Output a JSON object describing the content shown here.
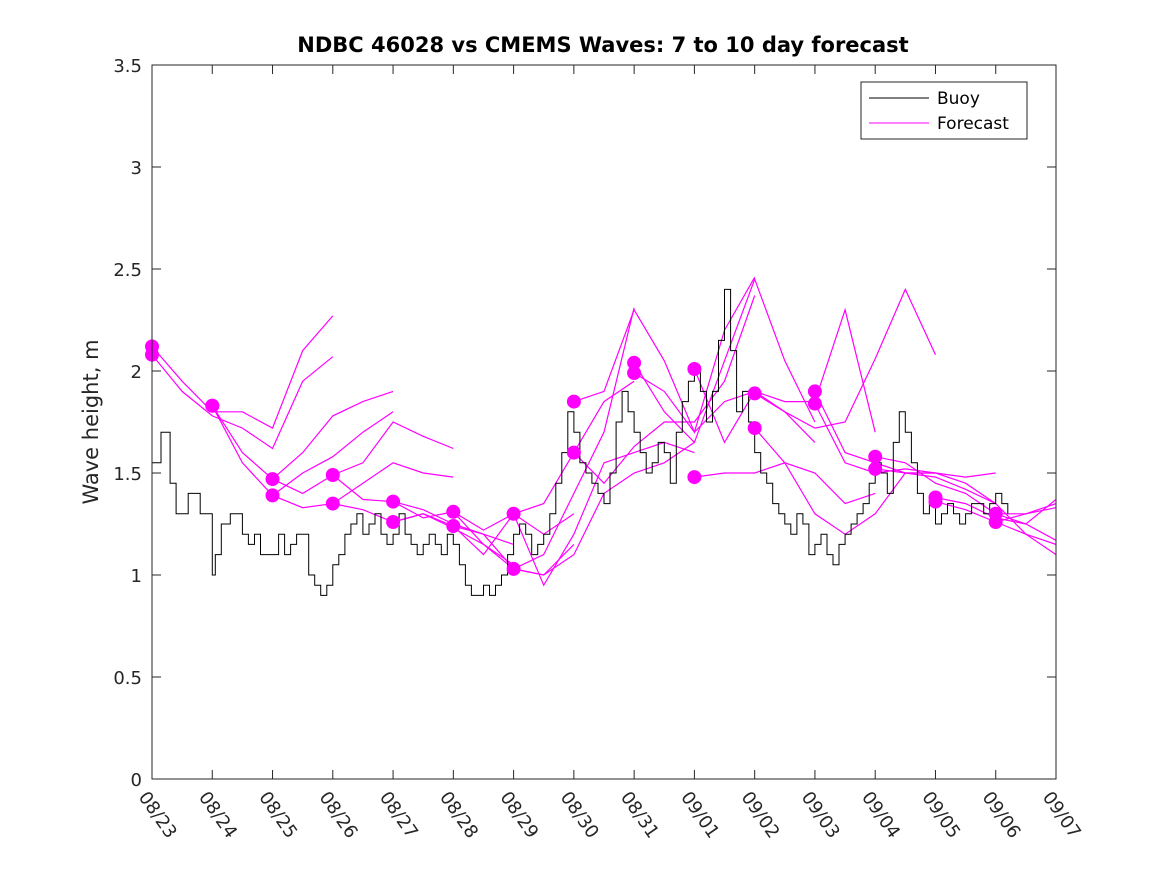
{
  "chart_data": {
    "type": "line",
    "title": "NDBC 46028 vs CMEMS Waves: 7 to 10 day forecast",
    "xlabel": "",
    "ylabel": "Wave height, m",
    "xlim": [
      0,
      15
    ],
    "ylim": [
      0,
      3.5
    ],
    "yticks": [
      0,
      0.5,
      1,
      1.5,
      2,
      2.5,
      3,
      3.5
    ],
    "ytick_labels": [
      "0",
      "0.5",
      "1",
      "1.5",
      "2",
      "2.5",
      "3",
      "3.5"
    ],
    "xticks": [
      0,
      1,
      2,
      3,
      4,
      5,
      6,
      7,
      8,
      9,
      10,
      11,
      12,
      13,
      14,
      15
    ],
    "xtick_labels": [
      "08/23",
      "08/24",
      "08/25",
      "08/26",
      "08/27",
      "08/28",
      "08/29",
      "08/30",
      "08/31",
      "09/01",
      "09/02",
      "09/03",
      "09/04",
      "09/05",
      "09/06",
      "09/07"
    ],
    "grid": false,
    "legend": {
      "position": "top-right",
      "entries": [
        {
          "label": "Buoy",
          "color": "#000000"
        },
        {
          "label": "Forecast",
          "color": "#ff00ff"
        }
      ]
    },
    "colors": {
      "buoy": "#000000",
      "forecast": "#ff00ff",
      "axis": "#262626"
    },
    "x_units": "days since 08/23",
    "buoy": {
      "name": "Buoy",
      "x": [
        0,
        0.15,
        0.3,
        0.4,
        0.5,
        0.6,
        0.8,
        1.0,
        1.05,
        1.15,
        1.3,
        1.5,
        1.6,
        1.7,
        1.8,
        2.0,
        2.1,
        2.2,
        2.3,
        2.4,
        2.5,
        2.6,
        2.7,
        2.8,
        2.9,
        3.0,
        3.1,
        3.2,
        3.3,
        3.4,
        3.5,
        3.6,
        3.7,
        3.8,
        3.9,
        4.0,
        4.1,
        4.2,
        4.3,
        4.4,
        4.5,
        4.6,
        4.7,
        4.8,
        4.9,
        5.0,
        5.1,
        5.2,
        5.3,
        5.4,
        5.5,
        5.6,
        5.7,
        5.8,
        5.9,
        6.0,
        6.1,
        6.2,
        6.3,
        6.4,
        6.5,
        6.6,
        6.7,
        6.8,
        6.9,
        7.0,
        7.1,
        7.2,
        7.3,
        7.4,
        7.5,
        7.6,
        7.7,
        7.8,
        7.9,
        8.0,
        8.1,
        8.2,
        8.3,
        8.4,
        8.5,
        8.6,
        8.7,
        8.8,
        8.9,
        9.0,
        9.1,
        9.2,
        9.3,
        9.4,
        9.5,
        9.6,
        9.7,
        9.8,
        9.9,
        10.0,
        10.1,
        10.2,
        10.3,
        10.4,
        10.5,
        10.6,
        10.7,
        10.8,
        10.9,
        11.0,
        11.1,
        11.2,
        11.3,
        11.4,
        11.5,
        11.6,
        11.7,
        11.8,
        11.9,
        12.0,
        12.1,
        12.2,
        12.3,
        12.4,
        12.5,
        12.6,
        12.7,
        12.8,
        12.9,
        13.0,
        13.1,
        13.2,
        13.3,
        13.4,
        13.5,
        13.6,
        13.7,
        13.8,
        13.9,
        14.0,
        14.1,
        14.2
      ],
      "values": [
        1.55,
        1.7,
        1.45,
        1.3,
        1.3,
        1.4,
        1.3,
        1.0,
        1.1,
        1.25,
        1.3,
        1.2,
        1.15,
        1.2,
        1.1,
        1.1,
        1.2,
        1.1,
        1.15,
        1.2,
        1.2,
        1.0,
        0.95,
        0.9,
        0.95,
        1.05,
        1.1,
        1.2,
        1.25,
        1.3,
        1.2,
        1.25,
        1.3,
        1.2,
        1.15,
        1.2,
        1.3,
        1.2,
        1.15,
        1.1,
        1.15,
        1.2,
        1.15,
        1.1,
        1.2,
        1.15,
        1.05,
        0.95,
        0.9,
        0.9,
        0.95,
        0.9,
        0.95,
        1.0,
        1.1,
        1.2,
        1.25,
        1.2,
        1.1,
        1.15,
        1.2,
        1.3,
        1.45,
        1.6,
        1.8,
        1.7,
        1.55,
        1.5,
        1.45,
        1.4,
        1.35,
        1.5,
        1.75,
        1.9,
        1.8,
        1.7,
        1.6,
        1.5,
        1.55,
        1.65,
        1.6,
        1.45,
        1.7,
        1.85,
        1.95,
        2.0,
        1.9,
        1.75,
        1.9,
        2.15,
        2.4,
        2.1,
        1.8,
        1.9,
        1.75,
        1.6,
        1.5,
        1.45,
        1.35,
        1.3,
        1.25,
        1.2,
        1.3,
        1.25,
        1.1,
        1.15,
        1.2,
        1.1,
        1.05,
        1.15,
        1.2,
        1.25,
        1.3,
        1.35,
        1.45,
        1.55,
        1.5,
        1.4,
        1.65,
        1.8,
        1.7,
        1.55,
        1.4,
        1.3,
        1.35,
        1.25,
        1.3,
        1.35,
        1.3,
        1.25,
        1.3,
        1.35,
        1.35,
        1.3,
        1.35,
        1.4,
        1.35,
        1.3
      ]
    },
    "forecast_series": [
      {
        "name": "Forecast",
        "x": [
          0,
          0.5,
          1.0,
          1.5,
          2.0,
          2.5,
          3.0
        ],
        "values": [
          2.12,
          1.95,
          1.8,
          1.8,
          1.72,
          2.1,
          2.27
        ]
      },
      {
        "name": "Forecast",
        "x": [
          0,
          0.5,
          1.0,
          1.5,
          2.0,
          2.5,
          3.0
        ],
        "values": [
          2.08,
          1.9,
          1.78,
          1.72,
          1.62,
          1.95,
          2.07
        ]
      },
      {
        "name": "Forecast",
        "x": [
          1.0,
          1.5,
          2.0,
          2.5,
          3.0,
          3.5,
          4.0
        ],
        "values": [
          1.83,
          1.6,
          1.47,
          1.6,
          1.78,
          1.85,
          1.9
        ]
      },
      {
        "name": "Forecast",
        "x": [
          1.0,
          1.5,
          2.0,
          2.5,
          3.0,
          3.5,
          4.0
        ],
        "values": [
          1.83,
          1.55,
          1.39,
          1.5,
          1.58,
          1.7,
          1.8
        ]
      },
      {
        "name": "Forecast",
        "x": [
          2.0,
          2.5,
          3.0,
          3.5,
          4.0,
          4.5,
          5.0
        ],
        "values": [
          1.47,
          1.4,
          1.49,
          1.55,
          1.75,
          1.68,
          1.62
        ]
      },
      {
        "name": "Forecast",
        "x": [
          2.0,
          2.5,
          3.0,
          3.5,
          4.0,
          4.5,
          5.0
        ],
        "values": [
          1.39,
          1.33,
          1.35,
          1.45,
          1.55,
          1.5,
          1.48
        ]
      },
      {
        "name": "Forecast",
        "x": [
          3.0,
          3.5,
          4.0,
          4.5,
          5.0,
          5.5,
          6.0
        ],
        "values": [
          1.49,
          1.37,
          1.36,
          1.32,
          1.25,
          1.2,
          1.15
        ]
      },
      {
        "name": "Forecast",
        "x": [
          3.0,
          3.5,
          4.0,
          4.5,
          5.0,
          5.5,
          6.0
        ],
        "values": [
          1.35,
          1.32,
          1.26,
          1.3,
          1.23,
          1.15,
          1.05
        ]
      },
      {
        "name": "Forecast",
        "x": [
          4.0,
          4.5,
          5.0,
          5.5,
          6.0,
          6.5,
          7.0
        ],
        "values": [
          1.36,
          1.28,
          1.31,
          1.22,
          1.3,
          1.2,
          1.3
        ]
      },
      {
        "name": "Forecast",
        "x": [
          4.0,
          4.5,
          5.0,
          5.5,
          6.0,
          6.5,
          7.0
        ],
        "values": [
          1.26,
          1.3,
          1.24,
          1.2,
          1.03,
          1.0,
          1.15
        ]
      },
      {
        "name": "Forecast",
        "x": [
          5.0,
          5.5,
          6.0,
          6.5,
          7.0,
          7.5,
          8.0
        ],
        "values": [
          1.31,
          1.15,
          1.03,
          1.1,
          1.4,
          1.7,
          2.31
        ]
      },
      {
        "name": "Forecast",
        "x": [
          5.0,
          5.5,
          6.0,
          6.5,
          7.0,
          7.5,
          8.0
        ],
        "values": [
          1.24,
          1.1,
          1.3,
          1.35,
          1.6,
          1.85,
          1.95
        ]
      },
      {
        "name": "Forecast",
        "x": [
          6.0,
          6.5,
          7.0,
          7.5,
          8.0,
          8.5,
          9.0
        ],
        "values": [
          1.3,
          0.95,
          1.2,
          1.55,
          1.6,
          1.65,
          1.6
        ]
      },
      {
        "name": "Forecast",
        "x": [
          6.0,
          6.5,
          7.0,
          7.5,
          8.0,
          8.5,
          9.0
        ],
        "values": [
          1.03,
          1.0,
          1.1,
          1.4,
          1.5,
          1.55,
          1.65
        ]
      },
      {
        "name": "Forecast",
        "x": [
          7.0,
          7.5,
          8.0,
          8.5,
          9.0,
          9.5,
          10.0
        ],
        "values": [
          1.85,
          1.9,
          2.3,
          2.05,
          1.7,
          2.2,
          2.46
        ]
      },
      {
        "name": "Forecast",
        "x": [
          7.0,
          7.5,
          8.0,
          8.5,
          9.0,
          9.5,
          10.0
        ],
        "values": [
          1.6,
          1.45,
          1.63,
          1.75,
          1.75,
          1.95,
          2.37
        ]
      },
      {
        "name": "Forecast",
        "x": [
          8.0,
          8.5,
          9.0,
          9.5,
          10.0,
          10.5,
          11.0
        ],
        "values": [
          2.04,
          1.8,
          1.65,
          2.05,
          2.45,
          2.05,
          1.75
        ]
      },
      {
        "name": "Forecast",
        "x": [
          8.0,
          8.5,
          9.0,
          9.5,
          10.0,
          10.5,
          11.0
        ],
        "values": [
          1.99,
          1.9,
          1.7,
          1.85,
          1.9,
          1.8,
          1.65
        ]
      },
      {
        "name": "Forecast",
        "x": [
          9.0,
          9.5,
          10.0,
          10.5,
          11.0,
          11.5,
          12.0
        ],
        "values": [
          2.01,
          1.65,
          1.9,
          1.85,
          1.85,
          2.3,
          1.7
        ]
      },
      {
        "name": "Forecast",
        "x": [
          9.0,
          9.5,
          10.0,
          10.5,
          11.0,
          11.5,
          12.0
        ],
        "values": [
          1.48,
          1.5,
          1.5,
          1.55,
          1.5,
          1.35,
          1.4
        ]
      },
      {
        "name": "Forecast",
        "x": [
          10.0,
          10.5,
          11.0,
          11.5,
          12.0,
          12.5,
          13.0
        ],
        "values": [
          1.89,
          1.8,
          1.72,
          1.75,
          2.06,
          2.4,
          2.08
        ]
      },
      {
        "name": "Forecast",
        "x": [
          10.0,
          10.5,
          11.0,
          11.5,
          12.0,
          12.5,
          13.0
        ],
        "values": [
          1.72,
          1.55,
          1.3,
          1.2,
          1.3,
          1.5,
          1.5
        ]
      },
      {
        "name": "Forecast",
        "x": [
          11.0,
          11.5,
          12.0,
          12.5,
          13.0,
          13.5,
          14.0
        ],
        "values": [
          1.9,
          1.6,
          1.55,
          1.5,
          1.48,
          1.42,
          1.35
        ]
      },
      {
        "name": "Forecast",
        "x": [
          11.0,
          11.5,
          12.0,
          12.5,
          13.0,
          13.5,
          14.0
        ],
        "values": [
          1.84,
          1.55,
          1.5,
          1.52,
          1.5,
          1.48,
          1.5
        ]
      },
      {
        "name": "Forecast",
        "x": [
          12.0,
          12.5,
          13.0,
          13.5,
          14.0,
          14.5,
          15.0
        ],
        "values": [
          1.58,
          1.55,
          1.45,
          1.4,
          1.3,
          1.25,
          1.37
        ]
      },
      {
        "name": "Forecast",
        "x": [
          12.0,
          12.5,
          13.0,
          13.5,
          14.0,
          14.5,
          15.0
        ],
        "values": [
          1.52,
          1.5,
          1.5,
          1.45,
          1.35,
          1.2,
          1.1
        ]
      },
      {
        "name": "Forecast",
        "x": [
          13.0,
          13.5,
          14.0,
          14.5,
          15.0
        ],
        "values": [
          1.38,
          1.35,
          1.28,
          1.25,
          1.17
        ]
      },
      {
        "name": "Forecast",
        "x": [
          13.0,
          13.5,
          14.0,
          14.5,
          15.0
        ],
        "values": [
          1.36,
          1.32,
          1.26,
          1.3,
          1.33
        ]
      },
      {
        "name": "Forecast",
        "x": [
          14.0,
          14.5,
          15.0
        ],
        "values": [
          1.3,
          1.3,
          1.35
        ]
      },
      {
        "name": "Forecast",
        "x": [
          14.0,
          14.5,
          15.0
        ],
        "values": [
          1.26,
          1.2,
          1.15
        ]
      }
    ]
  }
}
